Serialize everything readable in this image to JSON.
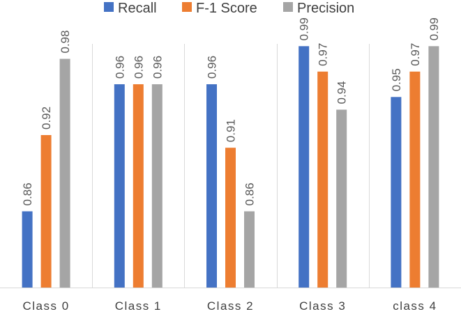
{
  "chart_data": {
    "type": "bar",
    "title": "",
    "xlabel": "",
    "ylabel": "",
    "ylim": [
      0.8,
      1.0
    ],
    "categories": [
      "Class 0",
      "Class 1",
      "Class 2",
      "Class 3",
      "class 4"
    ],
    "series": [
      {
        "name": "Recall",
        "color": "#4472C4",
        "values": [
          0.86,
          0.96,
          0.96,
          0.99,
          0.95
        ]
      },
      {
        "name": "F-1 Score",
        "color": "#ED7D31",
        "values": [
          0.92,
          0.96,
          0.91,
          0.97,
          0.97
        ]
      },
      {
        "name": "Precision",
        "color": "#A5A5A5",
        "values": [
          0.98,
          0.96,
          0.86,
          0.94,
          0.99
        ]
      }
    ],
    "legend_position": "top",
    "gridlines": "vertical category separators",
    "data_labels": true
  }
}
